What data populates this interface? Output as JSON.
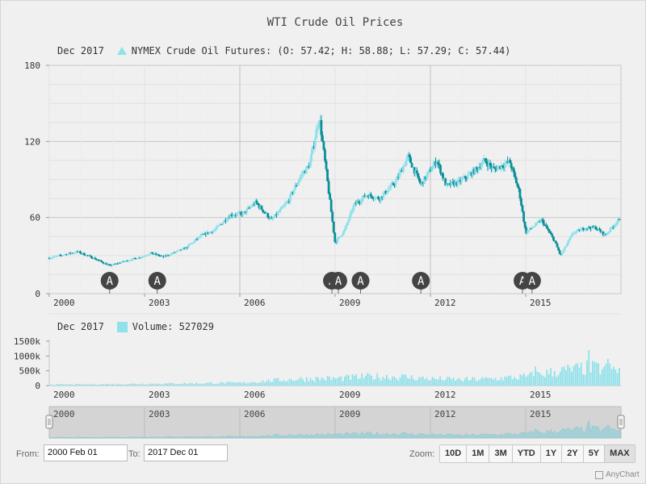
{
  "title": "WTI Crude Oil Prices",
  "price_legend": {
    "period": "Dec 2017",
    "series": "NYMEX Crude Oil Futures:",
    "ohlc": "(O: 57.42; H: 58.88; L: 57.29; C: 57.44)"
  },
  "volume_legend": {
    "period": "Dec 2017",
    "series": "Volume:",
    "value": "527029"
  },
  "range": {
    "from_label": "From:",
    "from_value": "2000 Feb 01",
    "to_label": "To:",
    "to_value": "2017 Dec 01"
  },
  "zoom": {
    "label": "Zoom:",
    "buttons": [
      "10D",
      "1M",
      "3M",
      "YTD",
      "1Y",
      "2Y",
      "5Y",
      "MAX"
    ],
    "active": "MAX"
  },
  "credit": "AnyChart",
  "colors": {
    "rising": "#8fe1ea",
    "falling": "#0a8f98",
    "volume": "#8fe1ea",
    "marker": "#444444"
  },
  "chart_data": {
    "type": "candlestick",
    "x_axis": {
      "start": 2000.0,
      "end": 2018.0,
      "tick_labels": [
        "2000",
        "2003",
        "2006",
        "2009",
        "2012",
        "2015"
      ],
      "tick_years": [
        2000,
        2003,
        2006,
        2009,
        2012,
        2015
      ]
    },
    "price_axis": {
      "ylim": [
        0,
        180
      ],
      "ticks": [
        0,
        60,
        120,
        180
      ]
    },
    "volume_axis": {
      "ylim": [
        0,
        1500000
      ],
      "ticks": [
        0,
        500000,
        1000000,
        1500000
      ],
      "tick_labels": [
        "0",
        "500k",
        "1000k",
        "1500k"
      ]
    },
    "navigator_labels": [
      "2000",
      "2003",
      "2006",
      "2009",
      "2012",
      "2015"
    ],
    "event_markers": [
      {
        "year": 2001.9,
        "label": "A"
      },
      {
        "year": 2003.4,
        "label": "A"
      },
      {
        "year": 2008.9,
        "label": "A"
      },
      {
        "year": 2009.1,
        "label": "A"
      },
      {
        "year": 2009.8,
        "label": "A"
      },
      {
        "year": 2011.7,
        "label": "A"
      },
      {
        "year": 2014.9,
        "label": "A"
      },
      {
        "year": 2015.2,
        "label": "A"
      }
    ],
    "price_close_anchors": [
      [
        2000.0,
        28
      ],
      [
        2000.5,
        31
      ],
      [
        2000.9,
        33
      ],
      [
        2001.4,
        28
      ],
      [
        2001.9,
        22
      ],
      [
        2002.3,
        25
      ],
      [
        2002.9,
        29
      ],
      [
        2003.2,
        32
      ],
      [
        2003.6,
        29
      ],
      [
        2003.9,
        32
      ],
      [
        2004.3,
        36
      ],
      [
        2004.8,
        46
      ],
      [
        2005.2,
        50
      ],
      [
        2005.7,
        62
      ],
      [
        2006.1,
        63
      ],
      [
        2006.5,
        72
      ],
      [
        2007.0,
        58
      ],
      [
        2007.5,
        72
      ],
      [
        2007.9,
        92
      ],
      [
        2008.2,
        102
      ],
      [
        2008.5,
        140
      ],
      [
        2008.7,
        100
      ],
      [
        2009.0,
        40
      ],
      [
        2009.3,
        50
      ],
      [
        2009.6,
        70
      ],
      [
        2010.0,
        78
      ],
      [
        2010.4,
        75
      ],
      [
        2010.9,
        88
      ],
      [
        2011.3,
        108
      ],
      [
        2011.7,
        86
      ],
      [
        2012.2,
        105
      ],
      [
        2012.5,
        85
      ],
      [
        2012.9,
        88
      ],
      [
        2013.4,
        97
      ],
      [
        2013.7,
        105
      ],
      [
        2014.0,
        98
      ],
      [
        2014.5,
        104
      ],
      [
        2014.8,
        80
      ],
      [
        2015.0,
        48
      ],
      [
        2015.5,
        58
      ],
      [
        2015.9,
        42
      ],
      [
        2016.1,
        30
      ],
      [
        2016.5,
        48
      ],
      [
        2016.9,
        52
      ],
      [
        2017.2,
        52
      ],
      [
        2017.5,
        46
      ],
      [
        2017.9,
        57.44
      ]
    ],
    "volume_anchors": [
      [
        2000.0,
        35000
      ],
      [
        2002.0,
        50000
      ],
      [
        2004.0,
        70000
      ],
      [
        2005.5,
        90000
      ],
      [
        2006.0,
        90000
      ],
      [
        2007.0,
        170000
      ],
      [
        2008.0,
        230000
      ],
      [
        2009.0,
        240000
      ],
      [
        2010.0,
        300000
      ],
      [
        2011.0,
        300000
      ],
      [
        2012.0,
        230000
      ],
      [
        2013.0,
        200000
      ],
      [
        2014.0,
        230000
      ],
      [
        2015.0,
        300000
      ],
      [
        2016.0,
        480000
      ],
      [
        2017.0,
        600000
      ],
      [
        2017.9,
        527029
      ]
    ],
    "volume_peaks": [
      [
        2015.3,
        650000
      ],
      [
        2017.0,
        1200000
      ],
      [
        2017.6,
        900000
      ]
    ]
  }
}
